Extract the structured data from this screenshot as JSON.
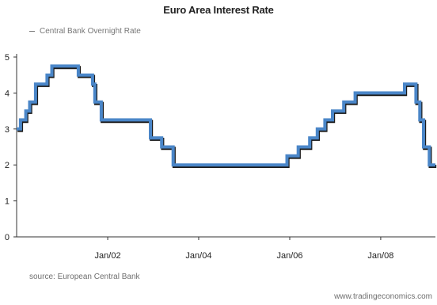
{
  "chart_data": {
    "type": "line",
    "title": "Euro Area Interest Rate",
    "xlabel": "",
    "ylabel": "",
    "legend_position": "top-left",
    "grid": false,
    "ylim": [
      0,
      5
    ],
    "xlim": [
      "2000-01-01",
      "2009-03-15"
    ],
    "yticks": [
      0,
      1,
      2,
      3,
      4,
      5
    ],
    "xticks": [
      {
        "date": "2002-01-01",
        "label": "Jan/02"
      },
      {
        "date": "2004-01-01",
        "label": "Jan/04"
      },
      {
        "date": "2006-01-01",
        "label": "Jan/06"
      },
      {
        "date": "2008-01-01",
        "label": "Jan/08"
      }
    ],
    "series": [
      {
        "name": "Central Bank Overnight Rate",
        "color": "#4a86c8",
        "shadow_color": "#1a1a1a",
        "step": true,
        "x": [
          "2000-01-01",
          "2000-02-01",
          "2000-03-15",
          "2000-04-15",
          "2000-06-01",
          "2000-09-01",
          "2000-10-10",
          "2001-05-10",
          "2001-09-01",
          "2001-09-20",
          "2001-11-10",
          "2002-12-10",
          "2003-03-10",
          "2003-06-10",
          "2005-12-10",
          "2006-03-10",
          "2006-06-10",
          "2006-08-10",
          "2006-10-10",
          "2006-12-10",
          "2007-03-10",
          "2007-06-10",
          "2008-07-10",
          "2008-10-10",
          "2008-11-10",
          "2008-12-10",
          "2009-01-25",
          "2009-03-15"
        ],
        "values": [
          3.0,
          3.25,
          3.5,
          3.75,
          4.25,
          4.5,
          4.75,
          4.5,
          4.25,
          3.75,
          3.25,
          2.75,
          2.5,
          2.0,
          2.25,
          2.5,
          2.75,
          3.0,
          3.25,
          3.5,
          3.75,
          4.0,
          4.25,
          3.75,
          3.25,
          2.5,
          2.0,
          2.0
        ]
      }
    ]
  },
  "legend": {
    "label": "Central Bank Overnight Rate",
    "color": "#777777"
  },
  "source_text": "source: European Central Bank",
  "credit_text": "www.tradingeconomics.com"
}
